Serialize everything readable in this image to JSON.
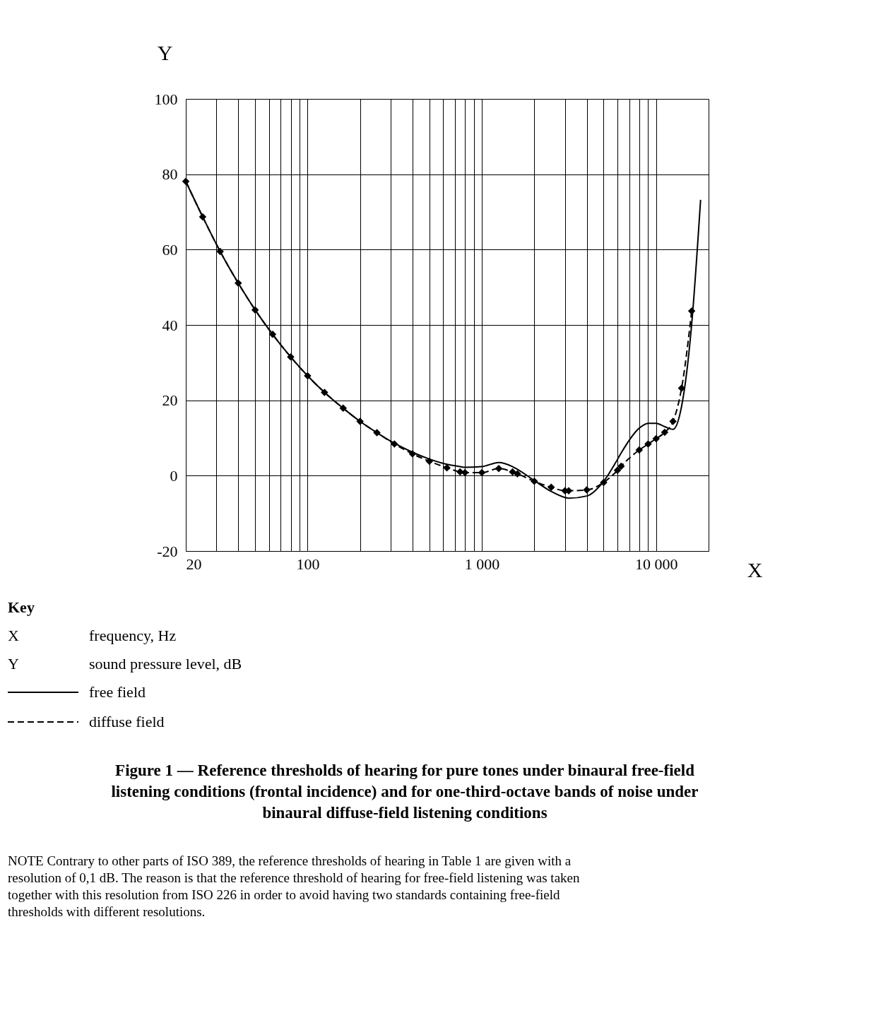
{
  "chart_data": {
    "type": "line",
    "title": "Figure 1 — Reference thresholds of hearing for pure tones under binaural free-field listening conditions (frontal incidence) and for one-third-octave bands of noise under binaural diffuse-field listening conditions",
    "xlabel": "X",
    "ylabel": "Y",
    "log": "x",
    "grid": true,
    "legend": "bottom left",
    "x": [
      20,
      25,
      31.5,
      40,
      50,
      63,
      80,
      100,
      125,
      160,
      200,
      250,
      315,
      400,
      500,
      630,
      750,
      800,
      1000,
      1250,
      1500,
      1600,
      2000,
      2500,
      3000,
      3150,
      4000,
      5000,
      6000,
      6300,
      8000,
      9000,
      10000,
      11200,
      12500,
      14000,
      16000
    ],
    "series": [
      {
        "name": "free field",
        "color": "#000000",
        "line_style": "solid",
        "marker": "none",
        "x": [
          20,
          25,
          31.5,
          40,
          50,
          63,
          80,
          100,
          125,
          160,
          200,
          250,
          315,
          400,
          500,
          630,
          750,
          800,
          1000,
          1250,
          1500,
          1600,
          2000,
          2500,
          3000,
          3150,
          4000,
          5000,
          6000,
          6300,
          8000,
          9000,
          10000,
          11200,
          12500,
          14000,
          16000,
          18000
        ],
        "values": [
          78.1,
          68.7,
          59.5,
          51.1,
          44.0,
          37.5,
          31.5,
          26.5,
          22.1,
          17.9,
          14.4,
          11.4,
          8.6,
          6.2,
          4.4,
          3.0,
          2.4,
          2.2,
          2.4,
          3.5,
          2.4,
          1.7,
          -1.3,
          -4.2,
          -5.8,
          -6.0,
          -5.4,
          -1.5,
          4.3,
          6.0,
          12.6,
          13.9,
          13.9,
          13.0,
          12.3,
          18.4,
          40.2,
          73.2
        ]
      },
      {
        "name": "diffuse field",
        "color": "#000000",
        "line_style": "dashed",
        "marker": "diamond",
        "values": [
          78.1,
          68.7,
          59.5,
          51.1,
          44.0,
          37.5,
          31.5,
          26.5,
          22.1,
          17.9,
          14.4,
          11.4,
          8.4,
          5.8,
          3.8,
          2.1,
          1.0,
          0.8,
          0.8,
          1.9,
          1.0,
          0.5,
          -1.5,
          -3.1,
          -4.0,
          -4.0,
          -3.8,
          -1.8,
          1.4,
          2.5,
          6.8,
          8.4,
          9.8,
          11.5,
          14.4,
          23.2,
          43.7
        ]
      }
    ],
    "xlim": [
      20,
      20000
    ],
    "xticks": [
      {
        "value": 20,
        "label": "20"
      },
      {
        "value": 30,
        "label": null
      },
      {
        "value": 40,
        "label": null
      },
      {
        "value": 50,
        "label": null
      },
      {
        "value": 60,
        "label": null
      },
      {
        "value": 70,
        "label": null
      },
      {
        "value": 80,
        "label": null
      },
      {
        "value": 90,
        "label": null
      },
      {
        "value": 100,
        "label": "100"
      },
      {
        "value": 200,
        "label": null
      },
      {
        "value": 300,
        "label": null
      },
      {
        "value": 400,
        "label": null
      },
      {
        "value": 500,
        "label": null
      },
      {
        "value": 600,
        "label": null
      },
      {
        "value": 700,
        "label": null
      },
      {
        "value": 800,
        "label": null
      },
      {
        "value": 900,
        "label": null
      },
      {
        "value": 1000,
        "label": "1 000"
      },
      {
        "value": 2000,
        "label": null
      },
      {
        "value": 3000,
        "label": null
      },
      {
        "value": 4000,
        "label": null
      },
      {
        "value": 5000,
        "label": null
      },
      {
        "value": 6000,
        "label": null
      },
      {
        "value": 7000,
        "label": null
      },
      {
        "value": 8000,
        "label": null
      },
      {
        "value": 9000,
        "label": null
      },
      {
        "value": 10000,
        "label": "10 000"
      },
      {
        "value": 20000,
        "label": null
      }
    ],
    "ylim": [
      -20,
      100
    ],
    "yticks": [
      -20,
      0,
      20,
      40,
      60,
      80,
      100
    ],
    "annotations": [
      "Key",
      "frequency, Hz",
      "sound pressure level, dB",
      "NOTE Contrary to other parts of ISO 389, the reference thresholds of hearing in Table 1 are given with a resolution of 0,1 dB. The reason is that the reference threshold of hearing for free-field listening was taken together with this resolution from ISO 226 in order to avoid having two standards containing free-field thresholds with different resolutions."
    ]
  }
}
